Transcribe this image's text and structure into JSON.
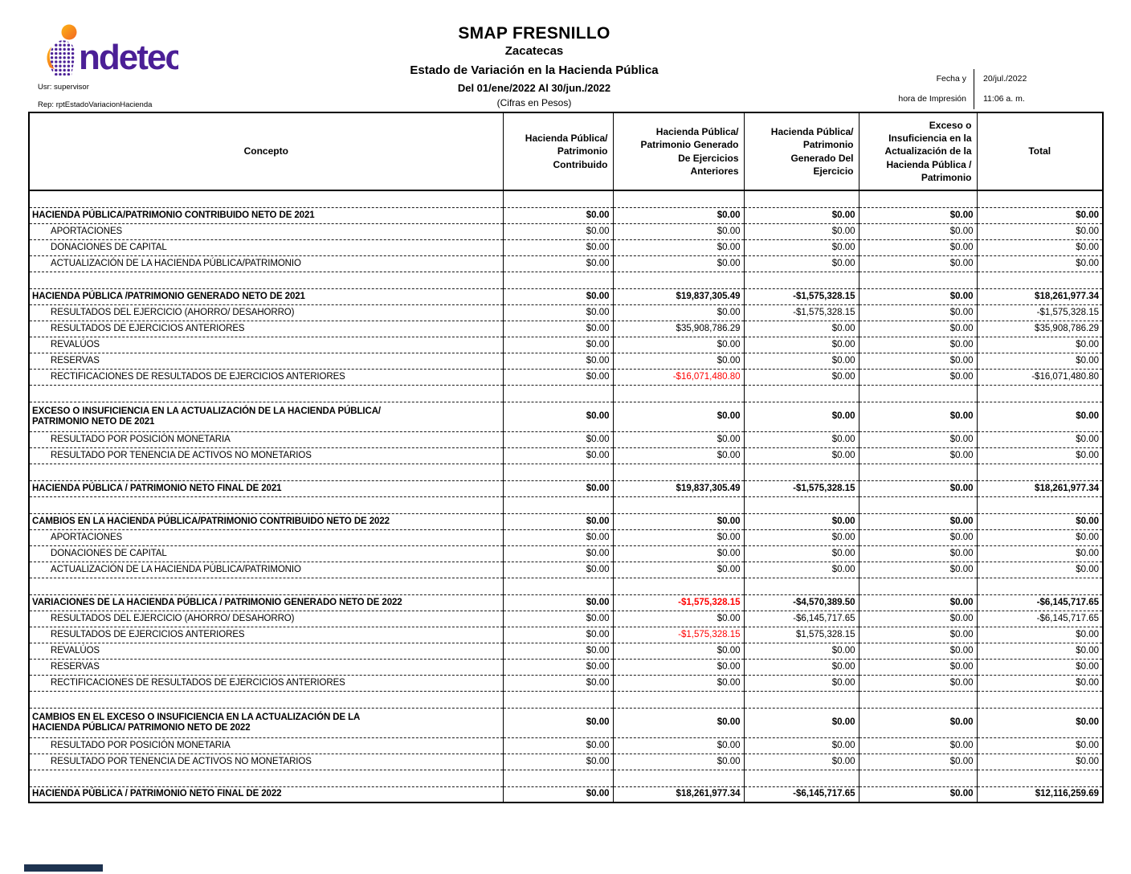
{
  "header": {
    "logo_text": "ndetec",
    "user_label": "Usr: supervisor",
    "report_label": "Rep: rptEstadoVariacionHacienda",
    "org_name": "SMAP FRESNILLO",
    "state": "Zacatecas",
    "title": "Estado de Variación en la Hacienda Pública",
    "period": "Del 01/ene/2022 Al 30/jun./2022",
    "units": "(Cifras en Pesos)",
    "date_label": "Fecha y",
    "date_value": "20/jul./2022",
    "time_label": "hora de Impresión",
    "time_value": "11:06 a. m."
  },
  "colors": {
    "logo_purple": "#4b1f96",
    "logo_orange": "#f7941e",
    "negative_red": "#ff0000",
    "footer_navy": "#1e3350"
  },
  "table": {
    "columns": [
      "Concepto",
      "Hacienda Pública/\nPatrimonio\nContribuido",
      "Hacienda Pública/\nPatrimonio Generado\nDe Ejercicios\nAnteriores",
      "Hacienda Pública/\nPatrimonio\nGenerado Del\nEjercicio",
      "Exceso o\nInsuficiencia en la\nActualización de la\nHacienda Pública /\nPatrimonio",
      "Total"
    ],
    "rows": [
      {
        "spacer": true
      },
      {
        "concept": "HACIENDA PÚBLICA/PATRIMONIO CONTRIBUIDO NETO DE 2021",
        "bold": true,
        "values": [
          "$0.00",
          "$0.00",
          "$0.00",
          "$0.00",
          "$0.00"
        ]
      },
      {
        "concept": "APORTACIONES",
        "indent": true,
        "values": [
          "$0.00",
          "$0.00",
          "$0.00",
          "$0.00",
          "$0.00"
        ]
      },
      {
        "concept": "DONACIONES DE CAPITAL",
        "indent": true,
        "values": [
          "$0.00",
          "$0.00",
          "$0.00",
          "$0.00",
          "$0.00"
        ]
      },
      {
        "concept": "ACTUALIZACIÓN DE LA HACIENDA PÚBLICA/PATRIMONIO",
        "indent": true,
        "values": [
          "$0.00",
          "$0.00",
          "$0.00",
          "$0.00",
          "$0.00"
        ]
      },
      {
        "spacer": true
      },
      {
        "concept": "HACIENDA PÚBLICA /PATRIMONIO GENERADO NETO DE 2021",
        "bold": true,
        "values": [
          "$0.00",
          "$19,837,305.49",
          "-$1,575,328.15",
          "$0.00",
          "$18,261,977.34"
        ]
      },
      {
        "concept": "RESULTADOS DEL EJERCICIO (AHORRO/ DESAHORRO)",
        "indent": true,
        "values": [
          "$0.00",
          "$0.00",
          "-$1,575,328.15",
          "$0.00",
          "-$1,575,328.15"
        ]
      },
      {
        "concept": "RESULTADOS DE EJERCICIOS ANTERIORES",
        "indent": true,
        "values": [
          "$0.00",
          "$35,908,786.29",
          "$0.00",
          "$0.00",
          "$35,908,786.29"
        ]
      },
      {
        "concept": "REVALÚOS",
        "indent": true,
        "values": [
          "$0.00",
          "$0.00",
          "$0.00",
          "$0.00",
          "$0.00"
        ]
      },
      {
        "concept": "RESERVAS",
        "indent": true,
        "values": [
          "$0.00",
          "$0.00",
          "$0.00",
          "$0.00",
          "$0.00"
        ]
      },
      {
        "concept": "RECTIFICACIONES DE RESULTADOS DE EJERCICIOS ANTERIORES",
        "indent": true,
        "values": [
          "$0.00",
          "-$16,071,480.80",
          "$0.00",
          "$0.00",
          "-$16,071,480.80"
        ],
        "red": [
          1
        ]
      },
      {
        "spacer": true
      },
      {
        "concept": "EXCESO O INSUFICIENCIA EN LA ACTUALIZACIÓN DE LA HACIENDA PÚBLICA/ PATRIMONIO NETO DE 2021",
        "bold": true,
        "tall": true,
        "values": [
          "$0.00",
          "$0.00",
          "$0.00",
          "$0.00",
          "$0.00"
        ]
      },
      {
        "concept": "RESULTADO POR POSICIÓN MONETARIA",
        "indent": true,
        "values": [
          "$0.00",
          "$0.00",
          "$0.00",
          "$0.00",
          "$0.00"
        ]
      },
      {
        "concept": "RESULTADO POR TENENCIA DE ACTIVOS NO MONETARIOS",
        "indent": true,
        "values": [
          "$0.00",
          "$0.00",
          "$0.00",
          "$0.00",
          "$0.00"
        ]
      },
      {
        "spacer": true
      },
      {
        "concept": "HACIENDA PÚBLICA / PATRIMONIO  NETO  FINAL DE 2021",
        "bold": true,
        "values": [
          "$0.00",
          "$19,837,305.49",
          "-$1,575,328.15",
          "$0.00",
          "$18,261,977.34"
        ]
      },
      {
        "spacer": true
      },
      {
        "concept": "CAMBIOS EN LA HACIENDA PÚBLICA/PATRIMONIO CONTRIBUIDO NETO DE 2022",
        "bold": true,
        "values": [
          "$0.00",
          "$0.00",
          "$0.00",
          "$0.00",
          "$0.00"
        ]
      },
      {
        "concept": "APORTACIONES",
        "indent": true,
        "values": [
          "$0.00",
          "$0.00",
          "$0.00",
          "$0.00",
          "$0.00"
        ]
      },
      {
        "concept": "DONACIONES DE CAPITAL",
        "indent": true,
        "values": [
          "$0.00",
          "$0.00",
          "$0.00",
          "$0.00",
          "$0.00"
        ]
      },
      {
        "concept": "ACTUALIZACIÓN DE LA HACIENDA PÚBLICA/PATRIMONIO",
        "indent": true,
        "values": [
          "$0.00",
          "$0.00",
          "$0.00",
          "$0.00",
          "$0.00"
        ]
      },
      {
        "spacer": true
      },
      {
        "concept": "VARIACIONES DE LA HACIENDA PÚBLICA / PATRIMONIO GENERADO NETO DE 2022",
        "bold": true,
        "values": [
          "$0.00",
          "-$1,575,328.15",
          "-$4,570,389.50",
          "$0.00",
          "-$6,145,717.65"
        ],
        "red": [
          1
        ]
      },
      {
        "concept": "RESULTADOS DEL EJERCICIO (AHORRO/ DESAHORRO)",
        "indent": true,
        "values": [
          "$0.00",
          "$0.00",
          "-$6,145,717.65",
          "$0.00",
          "-$6,145,717.65"
        ]
      },
      {
        "concept": "RESULTADOS DE EJERCICIOS ANTERIORES",
        "indent": true,
        "values": [
          "$0.00",
          "-$1,575,328.15",
          "$1,575,328.15",
          "$0.00",
          "$0.00"
        ],
        "red": [
          1
        ]
      },
      {
        "concept": "REVALÚOS",
        "indent": true,
        "values": [
          "$0.00",
          "$0.00",
          "$0.00",
          "$0.00",
          "$0.00"
        ]
      },
      {
        "concept": "RESERVAS",
        "indent": true,
        "values": [
          "$0.00",
          "$0.00",
          "$0.00",
          "$0.00",
          "$0.00"
        ]
      },
      {
        "concept": "RECTIFICACIONES DE RESULTADOS DE EJERCICIOS ANTERIORES",
        "indent": true,
        "values": [
          "$0.00",
          "$0.00",
          "$0.00",
          "$0.00",
          "$0.00"
        ]
      },
      {
        "spacer": true
      },
      {
        "concept": "CAMBIOS EN EL EXCESO O INSUFICIENCIA EN LA ACTUALIZACIÓN DE LA HACIENDA PÚBLICA/ PATRIMONIO NETO DE 2022",
        "bold": true,
        "tall": true,
        "values": [
          "$0.00",
          "$0.00",
          "$0.00",
          "$0.00",
          "$0.00"
        ]
      },
      {
        "concept": "RESULTADO POR POSICIÓN MONETARIA",
        "indent": true,
        "values": [
          "$0.00",
          "$0.00",
          "$0.00",
          "$0.00",
          "$0.00"
        ]
      },
      {
        "concept": "RESULTADO POR TENENCIA DE ACTIVOS NO MONETARIOS",
        "indent": true,
        "values": [
          "$0.00",
          "$0.00",
          "$0.00",
          "$0.00",
          "$0.00"
        ]
      },
      {
        "spacer": true
      },
      {
        "concept": "HACIENDA PÚBLICA / PATRIMONIO NETO FINAL DE 2022",
        "bold": true,
        "values": [
          "$0.00",
          "$18,261,977.34",
          "-$6,145,717.65",
          "$0.00",
          "$12,116,259.69"
        ]
      }
    ]
  }
}
